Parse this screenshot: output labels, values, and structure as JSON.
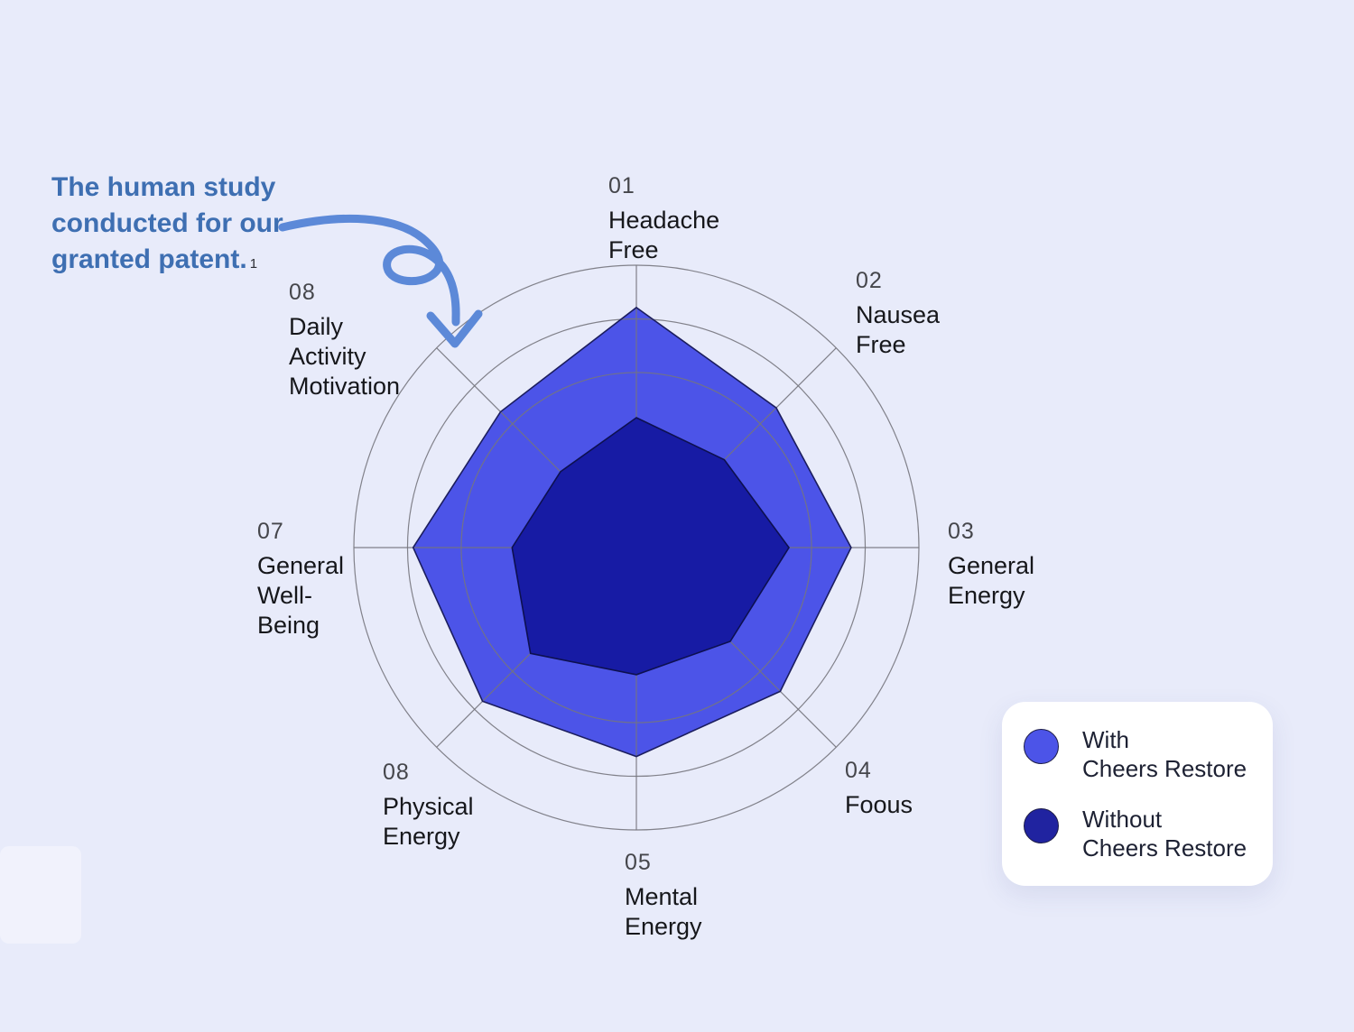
{
  "background_color": "#E8EBFA",
  "annotation": {
    "lines": [
      "The human study",
      "conducted for our",
      "granted patent."
    ],
    "footnote_marker": "1",
    "text_color": "#3E6FB2",
    "arrow_color": "#5C89D8"
  },
  "legend": {
    "entries": [
      {
        "line1": "With",
        "line2": "Cheers Restore",
        "swatch_color": "#4C54E8"
      },
      {
        "line1": "Without",
        "line2": "Cheers Restore",
        "swatch_color": "#2023A0"
      }
    ]
  },
  "chart_data": {
    "type": "radar",
    "axes": [
      {
        "num": "01",
        "lines": [
          "Headache",
          "Free"
        ]
      },
      {
        "num": "02",
        "lines": [
          "Nausea",
          "Free"
        ]
      },
      {
        "num": "03",
        "lines": [
          "General",
          "Energy"
        ]
      },
      {
        "num": "04",
        "lines": [
          "Foous"
        ]
      },
      {
        "num": "05",
        "lines": [
          "Mental",
          "Energy"
        ]
      },
      {
        "num": "08",
        "lines": [
          "Physical",
          "Energy"
        ]
      },
      {
        "num": "07",
        "lines": [
          "General",
          "Well-",
          "Being"
        ]
      },
      {
        "num": "08",
        "lines": [
          "Daily",
          "Activity",
          "Motivation"
        ]
      }
    ],
    "rings_pct": [
      62,
      81,
      100
    ],
    "series": [
      {
        "name": "With Cheers Restore",
        "values_pct": [
          85,
          70,
          76,
          72,
          74,
          77,
          79,
          68
        ],
        "fill": "#4C54E8",
        "stroke": "#1B1D5E"
      },
      {
        "name": "Without Cheers Restore",
        "values_pct": [
          46,
          44,
          54,
          47,
          45,
          53,
          44,
          38
        ],
        "fill": "#171BA4",
        "stroke": "#0D1050"
      }
    ],
    "grid_color": "#75757D",
    "start_angle_deg": 0,
    "direction": "clockwise"
  }
}
